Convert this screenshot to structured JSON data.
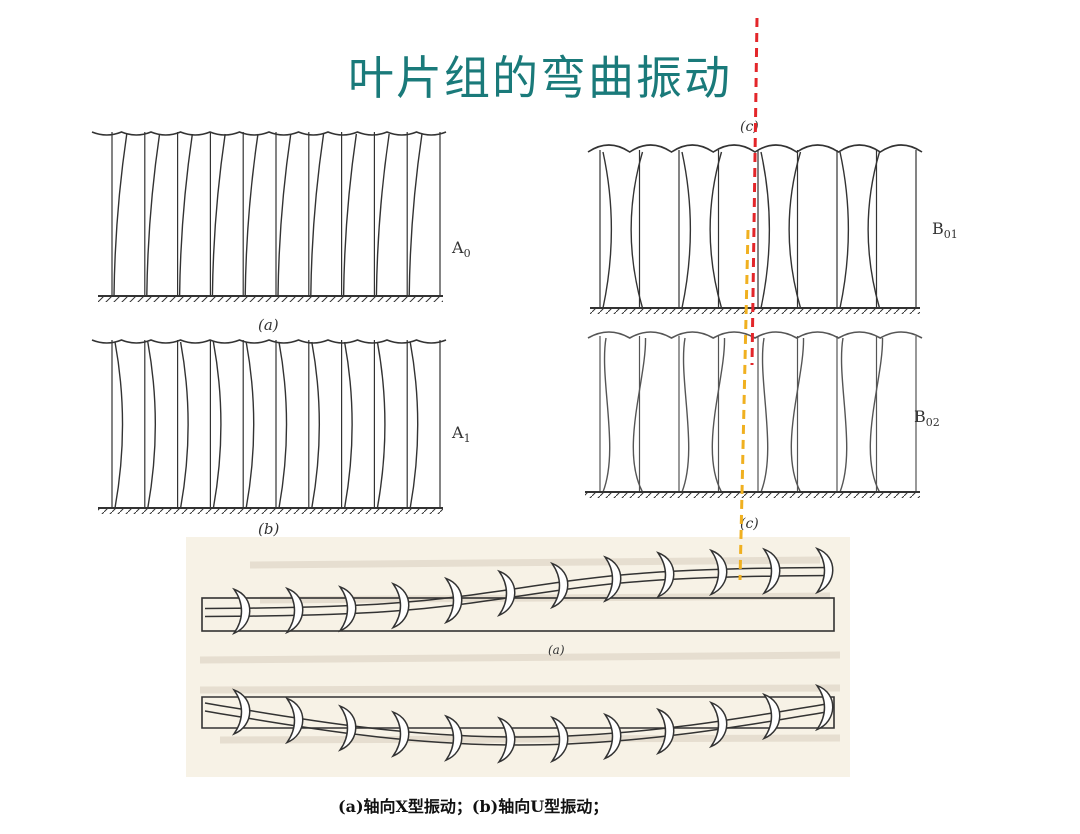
{
  "slide": {
    "title": "叶片组的弯曲振动",
    "colors": {
      "title": "#1a7a7a",
      "red_dashed_line": "#e3262a",
      "orange_dashed_line": "#f0b020",
      "ink": "#333333",
      "paper": "#f7f2e6"
    }
  },
  "panels": {
    "A0": {
      "mode_label": "A",
      "mode_sub": "0",
      "sub_caption": "(a)"
    },
    "A1": {
      "mode_label": "A",
      "mode_sub": "1",
      "sub_caption": "(b)"
    },
    "B01": {
      "mode_label": "B",
      "mode_sub": "01",
      "sub_caption": "(c)"
    },
    "B02": {
      "mode_label": "B",
      "mode_sub": "02",
      "sub_caption": "(c)"
    }
  },
  "axial": {
    "sub_caption": "(a)",
    "caption": "(a)轴向X型振动；(b)轴向U型振动；"
  }
}
